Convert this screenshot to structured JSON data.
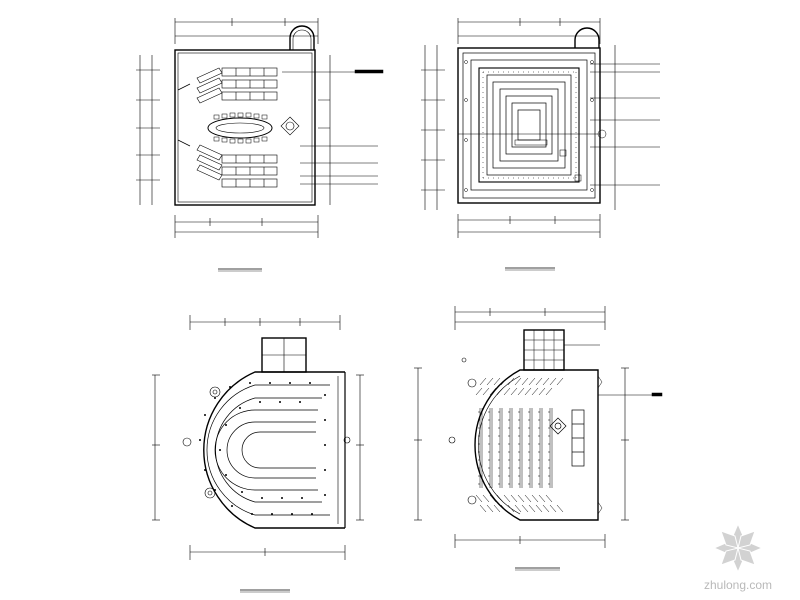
{
  "watermark": {
    "text": "zhulong.com",
    "color": "#c4c4c4",
    "icon": "flower-logo-icon"
  },
  "colors": {
    "line": "#000000",
    "background": "#ffffff"
  }
}
